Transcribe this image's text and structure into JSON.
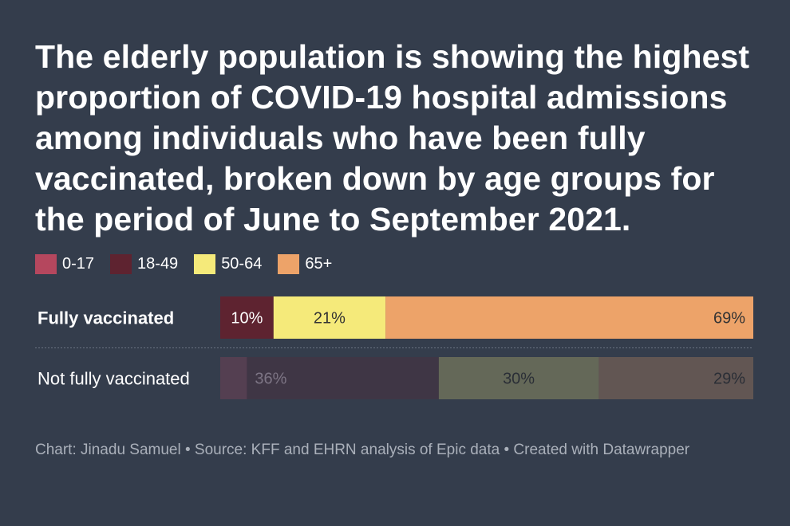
{
  "title": "The elderly population is showing the highest proportion of COVID-19 hospital admissions among individuals who have been fully vaccinated, broken down by age groups for the period of June to September 2021.",
  "legend": [
    {
      "label": "0-17",
      "color": "#b5475e"
    },
    {
      "label": "18-49",
      "color": "#5e2330"
    },
    {
      "label": "50-64",
      "color": "#f5ea7a"
    },
    {
      "label": "65+",
      "color": "#eda369"
    }
  ],
  "chart_data": {
    "type": "bar",
    "orientation": "horizontal",
    "stacked": true,
    "unit": "%",
    "categories": [
      "Fully vaccinated",
      "Not fully vaccinated"
    ],
    "series": [
      {
        "name": "0-17",
        "values": [
          0,
          5
        ],
        "labels": [
          "",
          ""
        ]
      },
      {
        "name": "18-49",
        "values": [
          10,
          36
        ],
        "labels": [
          "10%",
          "36%"
        ]
      },
      {
        "name": "50-64",
        "values": [
          21,
          30
        ],
        "labels": [
          "21%",
          "30%"
        ]
      },
      {
        "name": "65+",
        "values": [
          69,
          29
        ],
        "labels": [
          "69%",
          "29%"
        ]
      }
    ],
    "highlighted_category": "Fully vaccinated",
    "xlim": [
      0,
      100
    ]
  },
  "footer": "Chart: Jinadu Samuel • Source: KFF and EHRN analysis of Epic data • Created with Datawrapper"
}
